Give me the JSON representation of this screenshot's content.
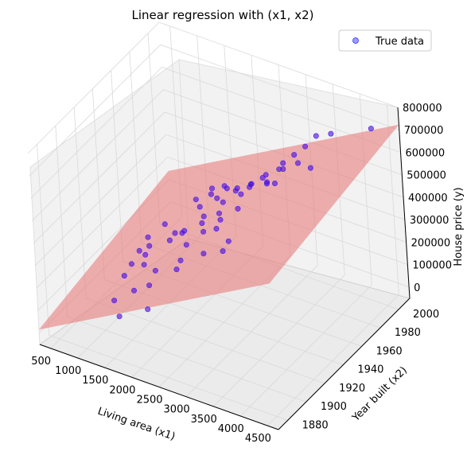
{
  "chart_data": {
    "type": "scatter",
    "title": "Linear regression with (x1, x2)",
    "xlabel": "Living area (x1)",
    "ylabel": "Year built (x2)",
    "zlabel": "House price (y)",
    "xlim": [
      300,
      4700
    ],
    "ylim": [
      1870,
      2012
    ],
    "zlim": [
      -50000,
      800000
    ],
    "xticks": [
      "500",
      "1000",
      "1500",
      "2000",
      "2500",
      "3000",
      "3500",
      "4000",
      "4500"
    ],
    "yticks": [
      "1880",
      "1900",
      "1920",
      "1940",
      "1960",
      "1980",
      "2000"
    ],
    "zticks": [
      "0",
      "100000",
      "200000",
      "300000",
      "400000",
      "500000",
      "600000",
      "700000",
      "800000"
    ],
    "legend": {
      "position": "upper-right",
      "entries": [
        "True data"
      ]
    },
    "grid": true,
    "colors": {
      "points": "#5a00d6",
      "points_front": "#2f2fff",
      "plane": "#e77d7d",
      "pane": "#f2f2f2",
      "grid": "#d9d9d9"
    },
    "regression_plane": {
      "corners": [
        {
          "x": 300,
          "y": 1870,
          "z": 16000
        },
        {
          "x": 4700,
          "y": 1870,
          "z": 600000
        },
        {
          "x": 4700,
          "y": 2012,
          "z": 723000
        },
        {
          "x": 300,
          "y": 2012,
          "z": 138000
        }
      ]
    },
    "series": [
      {
        "name": "True data",
        "points": [
          {
            "x": 1200,
            "y": 1920,
            "z": 180000
          },
          {
            "x": 1500,
            "y": 1950,
            "z": 220000
          },
          {
            "x": 1800,
            "y": 2000,
            "z": 240000
          },
          {
            "x": 1600,
            "y": 1975,
            "z": 200000
          },
          {
            "x": 1400,
            "y": 1965,
            "z": 160000
          },
          {
            "x": 2000,
            "y": 2004,
            "z": 260000
          },
          {
            "x": 2200,
            "y": 2005,
            "z": 300000
          },
          {
            "x": 1700,
            "y": 1990,
            "z": 210000
          },
          {
            "x": 1300,
            "y": 1955,
            "z": 150000
          },
          {
            "x": 1100,
            "y": 1940,
            "z": 130000
          },
          {
            "x": 2500,
            "y": 2006,
            "z": 360000
          },
          {
            "x": 2600,
            "y": 2005,
            "z": 400000
          },
          {
            "x": 1900,
            "y": 1998,
            "z": 230000
          },
          {
            "x": 1450,
            "y": 1960,
            "z": 175000
          },
          {
            "x": 1650,
            "y": 1970,
            "z": 195000
          },
          {
            "x": 1250,
            "y": 1930,
            "z": 140000
          },
          {
            "x": 2300,
            "y": 2003,
            "z": 330000
          },
          {
            "x": 2800,
            "y": 2006,
            "z": 450000
          },
          {
            "x": 3000,
            "y": 2007,
            "z": 500000
          },
          {
            "x": 1550,
            "y": 1925,
            "z": 160000
          },
          {
            "x": 1850,
            "y": 1935,
            "z": 190000
          },
          {
            "x": 2100,
            "y": 1960,
            "z": 250000
          },
          {
            "x": 1000,
            "y": 1950,
            "z": 120000
          },
          {
            "x": 900,
            "y": 1945,
            "z": 110000
          },
          {
            "x": 1350,
            "y": 1985,
            "z": 180000
          },
          {
            "x": 1750,
            "y": 2001,
            "z": 220000
          },
          {
            "x": 2400,
            "y": 1998,
            "z": 320000
          },
          {
            "x": 1600,
            "y": 1915,
            "z": 140000
          },
          {
            "x": 1400,
            "y": 1910,
            "z": 120000
          },
          {
            "x": 1200,
            "y": 1900,
            "z": 100000
          },
          {
            "x": 2700,
            "y": 1990,
            "z": 380000
          },
          {
            "x": 2000,
            "y": 1970,
            "z": 240000
          },
          {
            "x": 1800,
            "y": 1980,
            "z": 210000
          },
          {
            "x": 1500,
            "y": 1995,
            "z": 190000
          },
          {
            "x": 1300,
            "y": 2000,
            "z": 170000
          },
          {
            "x": 1100,
            "y": 1995,
            "z": 150000
          },
          {
            "x": 2200,
            "y": 1940,
            "z": 230000
          },
          {
            "x": 2500,
            "y": 1950,
            "z": 270000
          },
          {
            "x": 1950,
            "y": 1925,
            "z": 200000
          },
          {
            "x": 1700,
            "y": 1950,
            "z": 185000
          },
          {
            "x": 3200,
            "y": 2008,
            "z": 560000
          },
          {
            "x": 3500,
            "y": 2007,
            "z": 600000
          },
          {
            "x": 2900,
            "y": 2004,
            "z": 430000
          },
          {
            "x": 2650,
            "y": 2002,
            "z": 390000
          },
          {
            "x": 2350,
            "y": 2001,
            "z": 310000
          },
          {
            "x": 2050,
            "y": 1999,
            "z": 270000
          },
          {
            "x": 1550,
            "y": 2003,
            "z": 205000
          },
          {
            "x": 1250,
            "y": 2004,
            "z": 175000
          },
          {
            "x": 950,
            "y": 1970,
            "z": 130000
          },
          {
            "x": 800,
            "y": 1960,
            "z": 100000
          },
          {
            "x": 1050,
            "y": 1920,
            "z": 115000
          },
          {
            "x": 3300,
            "y": 1995,
            "z": 480000
          },
          {
            "x": 4300,
            "y": 2005,
            "z": 700000
          },
          {
            "x": 2750,
            "y": 1930,
            "z": 330000
          },
          {
            "x": 2100,
            "y": 1885,
            "z": 200000
          },
          {
            "x": 1650,
            "y": 1880,
            "z": 150000
          },
          {
            "x": 1950,
            "y": 2006,
            "z": 245000
          },
          {
            "x": 1450,
            "y": 2006,
            "z": 195000
          },
          {
            "x": 1850,
            "y": 1960,
            "z": 215000
          },
          {
            "x": 2250,
            "y": 1975,
            "z": 290000
          }
        ]
      }
    ]
  }
}
